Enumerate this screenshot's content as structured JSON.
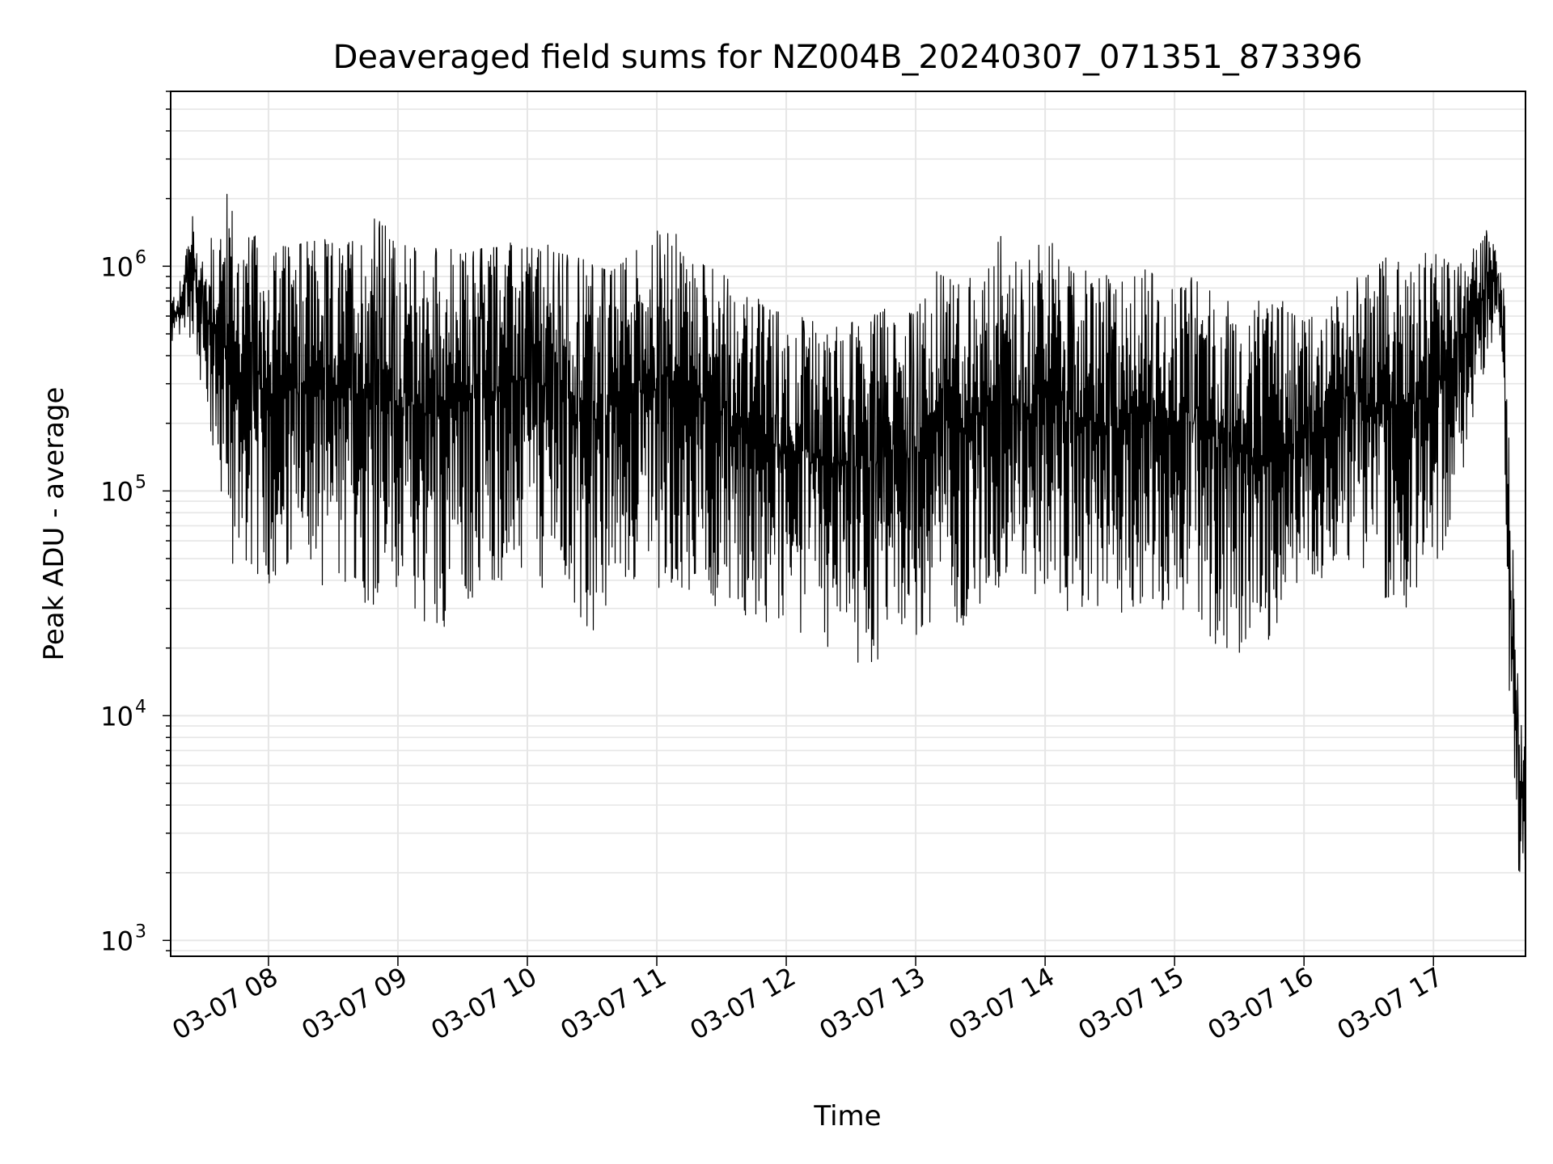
{
  "chart_data": {
    "type": "line",
    "title": "Deaveraged field sums for NZ004B_20240307_071351_873396",
    "xlabel": "Time",
    "ylabel": "Peak ADU - average",
    "yscale": "log",
    "ylim": [
      850,
      6000000
    ],
    "xlim": [
      "03-07 07:14:40",
      "03-07 17:42:40"
    ],
    "grid": true,
    "line_color": "#000000",
    "grid_color": "#e6e6e6",
    "x_ticks": [
      "03-07 08",
      "03-07 09",
      "03-07 10",
      "03-07 11",
      "03-07 12",
      "03-07 13",
      "03-07 14",
      "03-07 15",
      "03-07 16",
      "03-07 17"
    ],
    "y_ticks": [
      {
        "value": 1000,
        "base": "10",
        "exp": "3"
      },
      {
        "value": 10000,
        "base": "10",
        "exp": "4"
      },
      {
        "value": 100000,
        "base": "10",
        "exp": "5"
      },
      {
        "value": 1000000,
        "base": "10",
        "exp": "6"
      }
    ],
    "series": [
      {
        "x": [
          "07:14",
          "07:20",
          "07:25",
          "07:30",
          "07:35",
          "07:40",
          "07:42",
          "07:45",
          "07:50",
          "07:55",
          "08:00",
          "08:10",
          "08:20",
          "08:30",
          "08:40",
          "08:50",
          "09:00",
          "09:10",
          "09:20",
          "09:30",
          "09:40",
          "09:50",
          "10:00",
          "10:10",
          "10:20",
          "10:28",
          "10:30",
          "10:40",
          "10:50",
          "11:00",
          "11:10",
          "11:20",
          "11:30",
          "11:40",
          "11:50",
          "12:00",
          "12:10",
          "12:20",
          "12:30",
          "12:40",
          "12:50",
          "13:00",
          "13:10",
          "13:20",
          "13:30",
          "13:40",
          "13:50",
          "14:00",
          "14:10",
          "14:20",
          "14:30",
          "14:40",
          "14:50",
          "15:00",
          "15:10",
          "15:20",
          "15:30",
          "15:40",
          "15:50",
          "16:00",
          "16:10",
          "16:20",
          "16:30",
          "16:40",
          "16:50",
          "17:00",
          "17:10",
          "17:20",
          "17:25",
          "17:30",
          "17:33",
          "17:36",
          "17:40",
          "17:42"
        ],
        "high": [
          700000,
          900000,
          1800000,
          1000000,
          1600000,
          2000000,
          2500000,
          1500000,
          1400000,
          1400000,
          1300000,
          1300000,
          1400000,
          1300000,
          1400000,
          1800000,
          1300000,
          1300000,
          1300000,
          1200000,
          1300000,
          1300000,
          1300000,
          1250000,
          1200000,
          1150000,
          1100000,
          1000000,
          1300000,
          1500000,
          1400000,
          1100000,
          1000000,
          800000,
          700000,
          650000,
          600000,
          550000,
          600000,
          650000,
          700000,
          650000,
          1000000,
          900000,
          1000000,
          1500000,
          1000000,
          1600000,
          1000000,
          1000000,
          900000,
          1000000,
          1000000,
          800000,
          1000000,
          800000,
          700000,
          700000,
          700000,
          600000,
          650000,
          900000,
          1000000,
          1200000,
          1000000,
          1300000,
          1000000,
          1300000,
          1500000,
          1200000,
          800000,
          100000,
          9000,
          10000
        ],
        "low": [
          450000,
          420000,
          500000,
          250000,
          120000,
          60000,
          45000,
          45000,
          45000,
          40000,
          38000,
          35000,
          40000,
          35000,
          32000,
          30000,
          28000,
          25000,
          24000,
          30000,
          35000,
          40000,
          38000,
          35000,
          28000,
          16000,
          20000,
          35000,
          40000,
          35000,
          38000,
          33000,
          30000,
          28000,
          22000,
          21000,
          20000,
          19000,
          17000,
          16000,
          18000,
          20000,
          22000,
          25000,
          26000,
          30000,
          28000,
          30000,
          28000,
          25000,
          22000,
          30000,
          28000,
          30000,
          28000,
          20000,
          18000,
          20000,
          25000,
          35000,
          40000,
          50000,
          35000,
          30000,
          30000,
          40000,
          80000,
          250000,
          380000,
          600000,
          150000,
          5000,
          1800,
          1600
        ]
      }
    ]
  }
}
